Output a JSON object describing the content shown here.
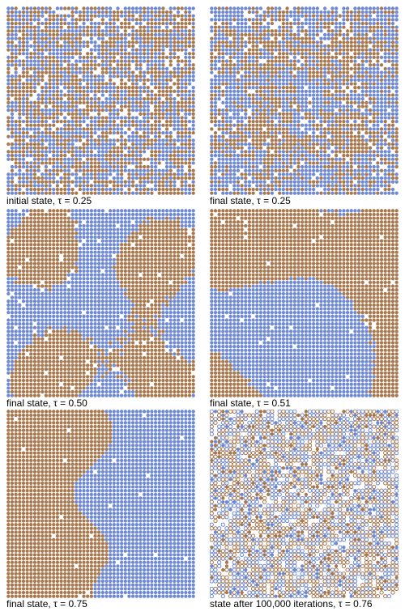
{
  "colors": {
    "brown": "#a8784e",
    "blue": "#6f8ad2",
    "background": "#ffffff"
  },
  "panels": [
    {
      "caption": "initial state, τ = 0.25",
      "mode": "random",
      "empty_fraction": 0.1,
      "seed": 11
    },
    {
      "caption": "final state, τ = 0.25",
      "mode": "clustered",
      "empty_fraction": 0.08,
      "seed": 23
    },
    {
      "caption": "final state, τ = 0.50",
      "mode": "blobs",
      "empty_fraction": 0.03,
      "seed": 41
    },
    {
      "caption": "final state, τ = 0.51",
      "mode": "large-blobs",
      "empty_fraction": 0.015,
      "seed": 57
    },
    {
      "caption": "final state, τ = 0.75",
      "mode": "split",
      "empty_fraction": 0.01,
      "seed": 73
    },
    {
      "caption": "state after 100,000 iterations, τ = 0.76",
      "mode": "sparse",
      "empty_fraction": 0.12,
      "seed": 97
    }
  ]
}
